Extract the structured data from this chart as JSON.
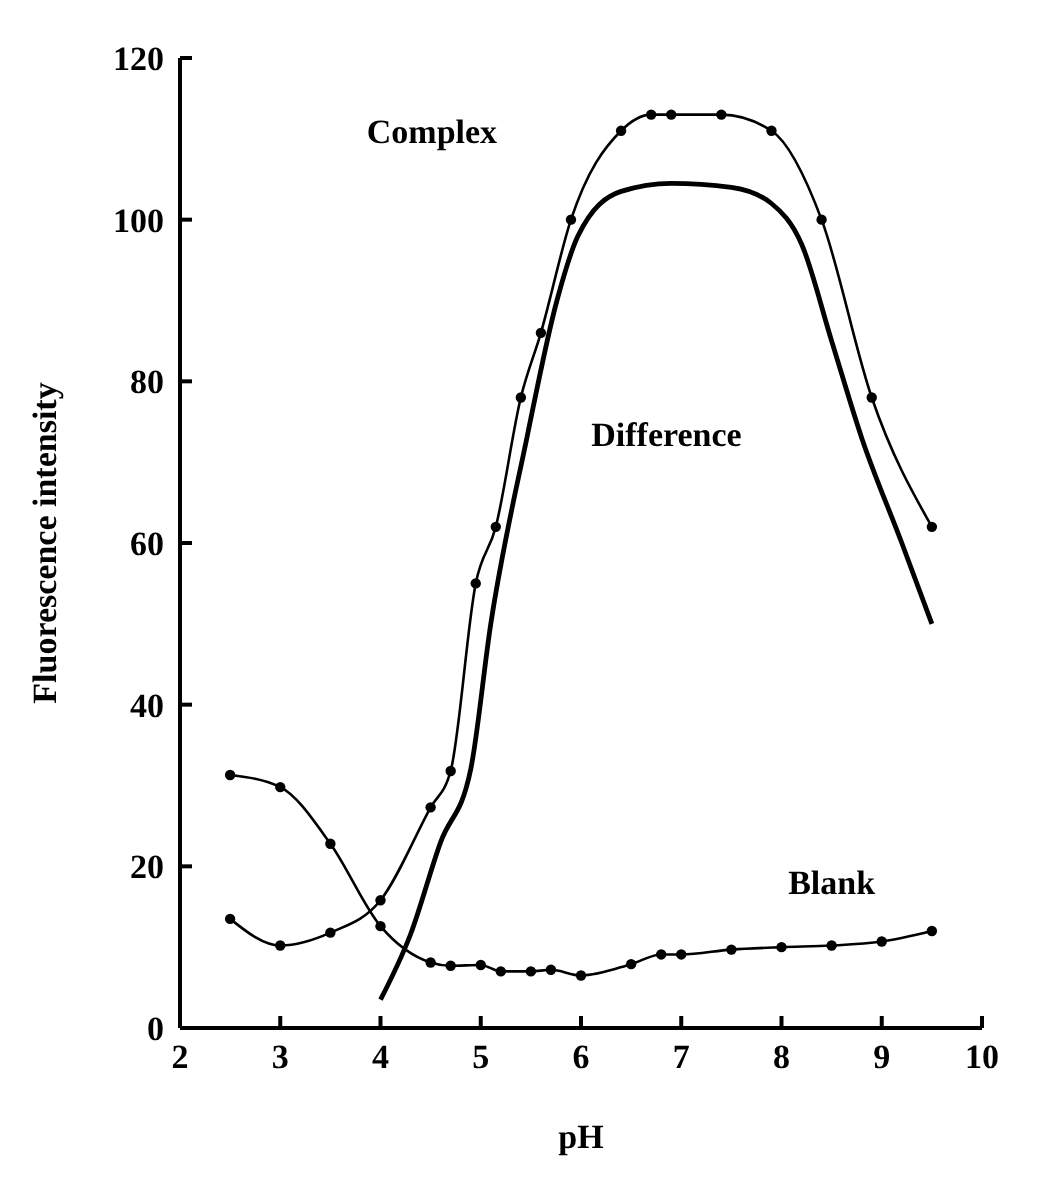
{
  "chart_data": {
    "type": "line",
    "xlabel": "pH",
    "ylabel": "Fluorescence intensity",
    "xlim": [
      2,
      10
    ],
    "xticks": [
      2,
      3,
      4,
      5,
      6,
      7,
      8,
      9,
      10
    ],
    "ylim": [
      0,
      120
    ],
    "yticks": [
      0,
      20,
      40,
      60,
      80,
      100,
      120
    ],
    "grid": false,
    "legend": false,
    "line_style": "solid",
    "series": [
      {
        "name": "Complex",
        "color": "#000000",
        "marker": "circle",
        "x": [
          2.5,
          3,
          3.5,
          4,
          4.5,
          4.7,
          4.95,
          5.15,
          5.4,
          5.6,
          5.9,
          6.4,
          6.7,
          6.9,
          7.4,
          7.9,
          8.4,
          8.9,
          9.5
        ],
        "values": [
          13.5,
          10.2,
          11.8,
          15.8,
          27.3,
          31.8,
          55,
          62,
          78,
          86,
          100,
          111,
          113,
          113,
          113,
          111,
          100,
          78,
          62
        ]
      },
      {
        "name": "Difference",
        "color": "#000000",
        "marker": "none",
        "x": [
          4,
          4.3,
          4.6,
          4.9,
          5.1,
          5.46,
          5.76,
          5.97,
          6.4,
          6.9,
          7.5,
          7.9,
          8.2,
          8.5,
          8.8,
          9.2,
          9.5
        ],
        "values": [
          3.5,
          11.6,
          23,
          32,
          50,
          73,
          90,
          98,
          103.5,
          104.5,
          104,
          102,
          97,
          85,
          73,
          60,
          50
        ]
      },
      {
        "name": "Blank",
        "color": "#000000",
        "marker": "circle",
        "x": [
          2.5,
          3,
          3.5,
          4,
          4.5,
          4.7,
          5,
          5.2,
          5.5,
          5.7,
          6,
          6.5,
          6.8,
          7,
          7.5,
          8,
          8.5,
          9,
          9.5
        ],
        "values": [
          31.3,
          29.8,
          22.8,
          12.6,
          8.1,
          7.7,
          7.8,
          7,
          7,
          7.2,
          6.5,
          7.9,
          9.1,
          9.1,
          9.7,
          10,
          10.2,
          10.7,
          12
        ]
      }
    ]
  }
}
